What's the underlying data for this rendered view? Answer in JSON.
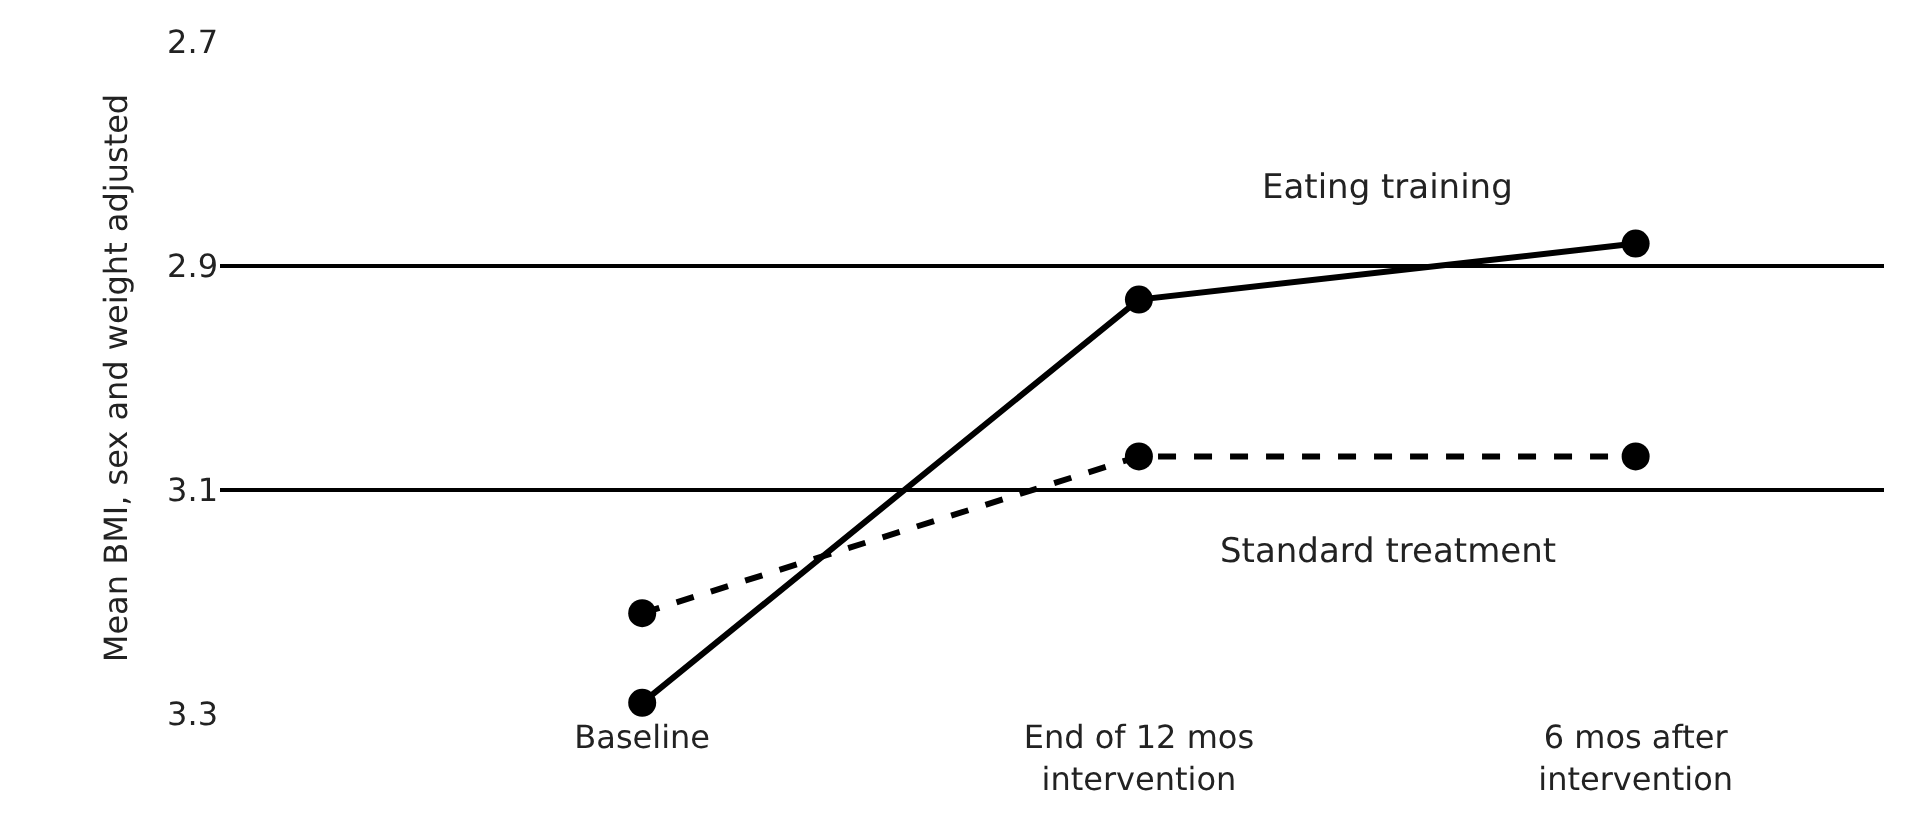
{
  "chart_data": {
    "type": "line",
    "ylabel": "Mean BMI, sex and weight adjusted",
    "categories": [
      "Baseline",
      "End of 12 mos\nintervention",
      "6 mos after\nintervention"
    ],
    "series": [
      {
        "name": "Eating training",
        "color": "#000000",
        "values": [
          3.29,
          2.93,
          2.88
        ],
        "line_style": "solid"
      },
      {
        "name": "Standard treatment",
        "color": "#000000",
        "values": [
          3.21,
          3.07,
          3.07
        ],
        "line_style": "dashed"
      }
    ],
    "ylim": [
      3.3,
      2.7
    ],
    "yticks": [
      2.7,
      2.9,
      3.1,
      3.3
    ],
    "grid": "y",
    "marker": "circle",
    "legend": false
  }
}
